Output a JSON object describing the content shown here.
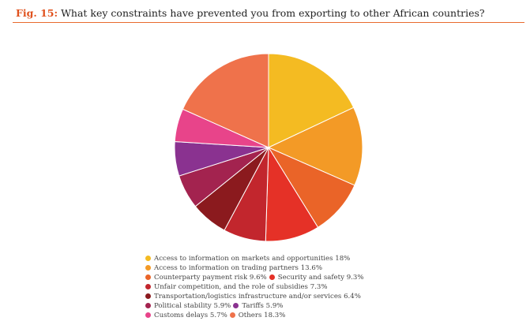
{
  "figure": {
    "label": "Fig. 15:",
    "question": "What key constraints have prevented you from exporting to other African countries?"
  },
  "chart_data": {
    "type": "pie",
    "title": "What key constraints have prevented you from exporting to other African countries?",
    "start_angle_deg": 0,
    "direction": "clockwise",
    "slices": [
      {
        "label": "Access to information on markets and opportunities",
        "value": 18,
        "display": "18%",
        "color": "#f4bb22"
      },
      {
        "label": "Access to information on trading partners",
        "value": 13.6,
        "display": "13.6%",
        "color": "#f39a26"
      },
      {
        "label": "Counterparty payment risk",
        "value": 9.6,
        "display": "9.6%",
        "color": "#ea6428"
      },
      {
        "label": "Security and safety",
        "value": 9.3,
        "display": "9.3%",
        "color": "#e53127"
      },
      {
        "label": "Unfair competition, and the role of subsidies",
        "value": 7.3,
        "display": "7.3%",
        "color": "#c2262d"
      },
      {
        "label": "Transportation/logistics infrastructure and/or services",
        "value": 6.4,
        "display": "6.4%",
        "color": "#8b1a1e"
      },
      {
        "label": "Political stability",
        "value": 5.9,
        "display": "5.9%",
        "color": "#a3234f"
      },
      {
        "label": "Tariffs",
        "value": 5.9,
        "display": "5.9%",
        "color": "#8a3290"
      },
      {
        "label": "Customs delays",
        "value": 5.7,
        "display": "5.7%",
        "color": "#e8448a"
      },
      {
        "label": "Others",
        "value": 18.3,
        "display": "18.3%",
        "color": "#ef724b"
      }
    ],
    "legend_rows": [
      [
        0
      ],
      [
        1
      ],
      [
        2,
        3
      ],
      [
        4
      ],
      [
        5
      ],
      [
        6,
        7
      ],
      [
        8,
        9
      ]
    ],
    "legend_placement": "bottom-center"
  }
}
